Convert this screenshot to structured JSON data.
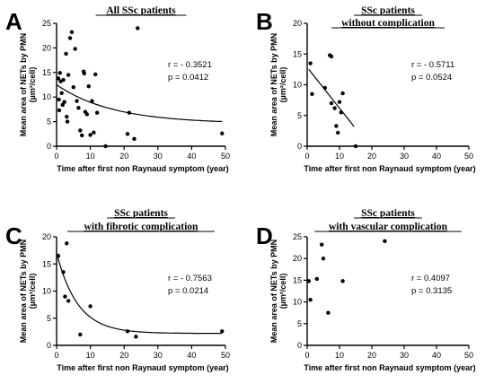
{
  "chart_data": [
    {
      "type": "scatter",
      "panel": "A",
      "title": [
        "All SSc patients"
      ],
      "xlabel": "Time after first non Raynaud symptom (year)",
      "ylabel": [
        "Mean area of NETs by PMN",
        "(µm²/cell)"
      ],
      "xlim": [
        0,
        50
      ],
      "ylim": [
        0,
        25
      ],
      "xticks": [
        0,
        10,
        20,
        30,
        40,
        50
      ],
      "yticks": [
        0,
        5,
        10,
        15,
        20,
        25
      ],
      "stats": {
        "r": "r = - 0.3521",
        "p": "p = 0.0412"
      },
      "fit": {
        "type": "exp-decay",
        "plateau": 4.6,
        "y0": 12.5,
        "k": 0.06,
        "xmax": 49
      },
      "points": [
        [
          0.5,
          13.8
        ],
        [
          0.7,
          9.5
        ],
        [
          0.8,
          7.3
        ],
        [
          1,
          14.9
        ],
        [
          1.2,
          13.2
        ],
        [
          1.5,
          10.8
        ],
        [
          1.8,
          8.4
        ],
        [
          2,
          13.5
        ],
        [
          2.3,
          9.0
        ],
        [
          2.8,
          18.8
        ],
        [
          3,
          6.0
        ],
        [
          3.2,
          5.0
        ],
        [
          3.5,
          14.5
        ],
        [
          4,
          22.0
        ],
        [
          4.5,
          23.2
        ],
        [
          5,
          12.0
        ],
        [
          5.5,
          19.8
        ],
        [
          6,
          9.2
        ],
        [
          6.5,
          7.8
        ],
        [
          7,
          3.2
        ],
        [
          7.5,
          2.2
        ],
        [
          8,
          15.2
        ],
        [
          8.2,
          14.8
        ],
        [
          8.5,
          7.0
        ],
        [
          9,
          6.5
        ],
        [
          9.5,
          12.2
        ],
        [
          10,
          2.3
        ],
        [
          10.5,
          9.2
        ],
        [
          11,
          2.8
        ],
        [
          11.5,
          14.6
        ],
        [
          12,
          6.8
        ],
        [
          14.5,
          0.0
        ],
        [
          21,
          2.5
        ],
        [
          21.5,
          6.8
        ],
        [
          23,
          1.5
        ],
        [
          24,
          24.0
        ],
        [
          49,
          2.6
        ]
      ]
    },
    {
      "type": "scatter",
      "panel": "B",
      "title": [
        "SSc patients",
        "without complication"
      ],
      "xlabel": "Time after first non Raynaud symptom (year)",
      "ylabel": [
        "Mean area of NETs by PMN",
        "(µm²/cell)"
      ],
      "xlim": [
        0,
        50
      ],
      "ylim": [
        0,
        20
      ],
      "xticks": [
        0,
        10,
        20,
        30,
        40,
        50
      ],
      "yticks": [
        0,
        5,
        10,
        15,
        20
      ],
      "stats": {
        "r": "r = - 0.5711",
        "p": "p = 0.0524"
      },
      "fit": {
        "type": "linear",
        "x1": 0.5,
        "y1": 12.5,
        "x2": 14.5,
        "y2": 3.2
      },
      "points": [
        [
          1,
          13.5
        ],
        [
          1.5,
          8.5
        ],
        [
          5.5,
          9.5
        ],
        [
          7,
          14.8
        ],
        [
          7.5,
          14.6
        ],
        [
          7.5,
          7.0
        ],
        [
          8.5,
          6.2
        ],
        [
          9,
          3.3
        ],
        [
          9.5,
          2.2
        ],
        [
          10,
          7.2
        ],
        [
          10.5,
          5.5
        ],
        [
          11,
          8.6
        ],
        [
          15,
          0.0
        ]
      ]
    },
    {
      "type": "scatter",
      "panel": "C",
      "title": [
        "SSc patients",
        "with fibrotic complication"
      ],
      "xlabel": "Time after first non Raynaud symptom (year)",
      "ylabel": [
        "Mean area of NETs by PMN",
        "(µm²/cell)"
      ],
      "xlim": [
        0,
        50
      ],
      "ylim": [
        0,
        20
      ],
      "xticks": [
        0,
        10,
        20,
        30,
        40,
        50
      ],
      "yticks": [
        0,
        5,
        10,
        15,
        20
      ],
      "stats": {
        "r": "r = - 0.7563",
        "p": "p = 0.0214"
      },
      "fit": {
        "type": "exp-decay",
        "plateau": 2.2,
        "y0": 17.0,
        "k": 0.16,
        "xmax": 49
      },
      "points": [
        [
          0.5,
          16.5
        ],
        [
          2,
          13.5
        ],
        [
          2.5,
          9.0
        ],
        [
          3,
          18.8
        ],
        [
          3.5,
          8.2
        ],
        [
          7,
          2.0
        ],
        [
          10,
          7.2
        ],
        [
          21,
          2.6
        ],
        [
          23.5,
          1.6
        ],
        [
          49,
          2.6
        ]
      ]
    },
    {
      "type": "scatter",
      "panel": "D",
      "title": [
        "SSc patients",
        "with vascular complication"
      ],
      "xlabel": "Time after first non Raynaud symptom (year)",
      "ylabel": [
        "Mean area of NETs by PMN",
        "(µm²/cell)"
      ],
      "xlim": [
        0,
        50
      ],
      "ylim": [
        0,
        25
      ],
      "xticks": [
        0,
        10,
        20,
        30,
        40,
        50
      ],
      "yticks": [
        0,
        5,
        10,
        15,
        20,
        25
      ],
      "stats": {
        "r": "r = 0.4097",
        "p": "p = 0.3135"
      },
      "fit": null,
      "points": [
        [
          0.5,
          14.8
        ],
        [
          1,
          10.5
        ],
        [
          3,
          15.3
        ],
        [
          4.5,
          23.2
        ],
        [
          5,
          20.0
        ],
        [
          6.5,
          7.5
        ],
        [
          11,
          14.8
        ],
        [
          24,
          24.0
        ]
      ]
    }
  ]
}
